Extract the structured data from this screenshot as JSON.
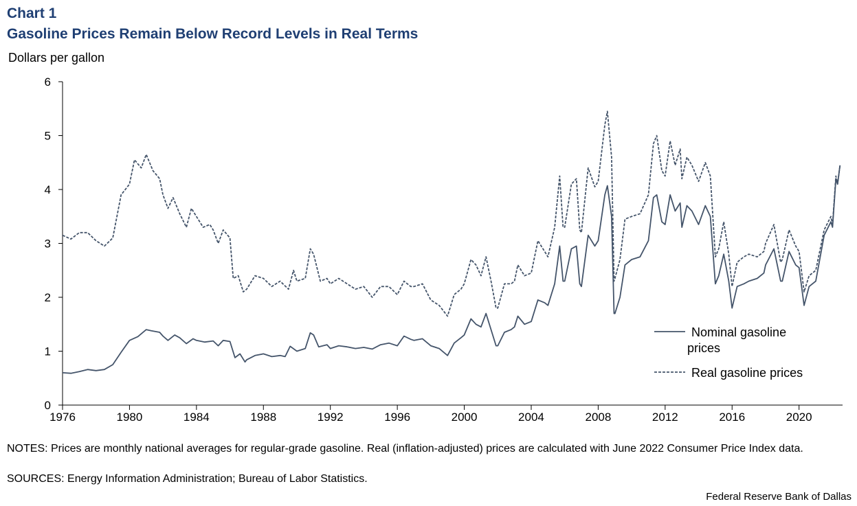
{
  "header": {
    "chart_number": "Chart 1",
    "title": "Gasoline Prices Remain Below Record Levels in Real Terms",
    "ylabel": "Dollars per gallon"
  },
  "footer": {
    "notes": "NOTES: Prices are monthly national averages for regular-grade gasoline. Real (inflation-adjusted) prices are calculated with June 2022 Consumer Price Index data.",
    "sources": "SOURCES: Energy Information Administration; Bureau of Labor Statistics.",
    "credit": "Federal Reserve Bank of Dallas"
  },
  "colors": {
    "title": "#1f3f73",
    "series": "#44546a"
  },
  "chart_data": {
    "type": "line",
    "title": "Gasoline Prices Remain Below Record Levels in Real Terms",
    "xlabel": "",
    "ylabel": "Dollars per gallon",
    "xlim": [
      1976,
      2022.6
    ],
    "ylim": [
      0,
      6
    ],
    "x_ticks": [
      1976,
      1980,
      1984,
      1988,
      1992,
      1996,
      2000,
      2004,
      2008,
      2012,
      2016,
      2020
    ],
    "y_ticks": [
      0,
      1,
      2,
      3,
      4,
      5,
      6
    ],
    "legend_position": "right",
    "series": [
      {
        "name": "Nominal gasoline prices",
        "style": "solid",
        "legend_lines": [
          "Nominal gasoline",
          "prices"
        ],
        "points": [
          [
            1976,
            0.6
          ],
          [
            1976.5,
            0.59
          ],
          [
            1977,
            0.62
          ],
          [
            1977.5,
            0.66
          ],
          [
            1978,
            0.64
          ],
          [
            1978.5,
            0.66
          ],
          [
            1979,
            0.75
          ],
          [
            1979.5,
            0.98
          ],
          [
            1980,
            1.2
          ],
          [
            1980.5,
            1.27
          ],
          [
            1981,
            1.4
          ],
          [
            1981.3,
            1.38
          ],
          [
            1981.8,
            1.35
          ],
          [
            1982,
            1.28
          ],
          [
            1982.3,
            1.2
          ],
          [
            1982.7,
            1.3
          ],
          [
            1983,
            1.25
          ],
          [
            1983.4,
            1.14
          ],
          [
            1983.8,
            1.23
          ],
          [
            1984,
            1.2
          ],
          [
            1984.5,
            1.17
          ],
          [
            1985,
            1.19
          ],
          [
            1985.3,
            1.1
          ],
          [
            1985.6,
            1.2
          ],
          [
            1986,
            1.18
          ],
          [
            1986.3,
            0.88
          ],
          [
            1986.6,
            0.95
          ],
          [
            1986.9,
            0.8
          ],
          [
            1987,
            0.84
          ],
          [
            1987.5,
            0.92
          ],
          [
            1988,
            0.95
          ],
          [
            1988.5,
            0.9
          ],
          [
            1989,
            0.92
          ],
          [
            1989.3,
            0.9
          ],
          [
            1989.6,
            1.09
          ],
          [
            1990,
            1.0
          ],
          [
            1990.5,
            1.05
          ],
          [
            1990.8,
            1.34
          ],
          [
            1991,
            1.3
          ],
          [
            1991.3,
            1.08
          ],
          [
            1991.8,
            1.12
          ],
          [
            1992,
            1.05
          ],
          [
            1992.5,
            1.1
          ],
          [
            1993,
            1.08
          ],
          [
            1993.5,
            1.05
          ],
          [
            1994,
            1.07
          ],
          [
            1994.5,
            1.04
          ],
          [
            1995,
            1.12
          ],
          [
            1995.5,
            1.15
          ],
          [
            1996,
            1.1
          ],
          [
            1996.4,
            1.28
          ],
          [
            1996.8,
            1.22
          ],
          [
            1997,
            1.2
          ],
          [
            1997.5,
            1.23
          ],
          [
            1998,
            1.1
          ],
          [
            1998.5,
            1.05
          ],
          [
            1999,
            0.92
          ],
          [
            1999.4,
            1.15
          ],
          [
            1999.8,
            1.25
          ],
          [
            2000,
            1.3
          ],
          [
            2000.4,
            1.6
          ],
          [
            2000.7,
            1.5
          ],
          [
            2001,
            1.45
          ],
          [
            2001.3,
            1.7
          ],
          [
            2001.6,
            1.4
          ],
          [
            2001.9,
            1.1
          ],
          [
            2002,
            1.1
          ],
          [
            2002.4,
            1.35
          ],
          [
            2002.8,
            1.4
          ],
          [
            2003,
            1.45
          ],
          [
            2003.2,
            1.65
          ],
          [
            2003.6,
            1.5
          ],
          [
            2004,
            1.55
          ],
          [
            2004.4,
            1.95
          ],
          [
            2004.8,
            1.9
          ],
          [
            2005,
            1.85
          ],
          [
            2005.4,
            2.25
          ],
          [
            2005.7,
            2.95
          ],
          [
            2005.9,
            2.3
          ],
          [
            2006,
            2.3
          ],
          [
            2006.4,
            2.9
          ],
          [
            2006.7,
            2.95
          ],
          [
            2006.9,
            2.25
          ],
          [
            2007,
            2.2
          ],
          [
            2007.4,
            3.15
          ],
          [
            2007.8,
            2.95
          ],
          [
            2008,
            3.05
          ],
          [
            2008.4,
            3.9
          ],
          [
            2008.55,
            4.07
          ],
          [
            2008.8,
            3.5
          ],
          [
            2008.95,
            1.7
          ],
          [
            2009,
            1.7
          ],
          [
            2009.3,
            2.0
          ],
          [
            2009.6,
            2.6
          ],
          [
            2010,
            2.7
          ],
          [
            2010.5,
            2.75
          ],
          [
            2011,
            3.05
          ],
          [
            2011.3,
            3.85
          ],
          [
            2011.5,
            3.9
          ],
          [
            2011.8,
            3.4
          ],
          [
            2012,
            3.35
          ],
          [
            2012.3,
            3.9
          ],
          [
            2012.6,
            3.6
          ],
          [
            2012.9,
            3.75
          ],
          [
            2013,
            3.3
          ],
          [
            2013.3,
            3.7
          ],
          [
            2013.6,
            3.6
          ],
          [
            2014,
            3.35
          ],
          [
            2014.4,
            3.7
          ],
          [
            2014.7,
            3.5
          ],
          [
            2015,
            2.25
          ],
          [
            2015.2,
            2.4
          ],
          [
            2015.5,
            2.8
          ],
          [
            2015.8,
            2.3
          ],
          [
            2016,
            1.8
          ],
          [
            2016.3,
            2.2
          ],
          [
            2016.7,
            2.25
          ],
          [
            2017,
            2.3
          ],
          [
            2017.5,
            2.35
          ],
          [
            2017.9,
            2.45
          ],
          [
            2018,
            2.6
          ],
          [
            2018.5,
            2.9
          ],
          [
            2018.9,
            2.3
          ],
          [
            2019,
            2.3
          ],
          [
            2019.4,
            2.85
          ],
          [
            2019.8,
            2.6
          ],
          [
            2020,
            2.55
          ],
          [
            2020.3,
            1.85
          ],
          [
            2020.6,
            2.2
          ],
          [
            2021,
            2.3
          ],
          [
            2021.5,
            3.15
          ],
          [
            2021.9,
            3.4
          ],
          [
            2022,
            3.3
          ],
          [
            2022.2,
            4.2
          ],
          [
            2022.3,
            4.1
          ],
          [
            2022.45,
            4.45
          ]
        ]
      },
      {
        "name": "Real gasoline prices",
        "style": "dashed",
        "legend_lines": [
          "Real gasoline prices"
        ],
        "points": [
          [
            1976,
            3.15
          ],
          [
            1976.5,
            3.08
          ],
          [
            1977,
            3.2
          ],
          [
            1977.5,
            3.2
          ],
          [
            1978,
            3.05
          ],
          [
            1978.5,
            2.95
          ],
          [
            1979,
            3.1
          ],
          [
            1979.5,
            3.9
          ],
          [
            1980,
            4.1
          ],
          [
            1980.3,
            4.55
          ],
          [
            1980.7,
            4.4
          ],
          [
            1981,
            4.65
          ],
          [
            1981.4,
            4.35
          ],
          [
            1981.8,
            4.2
          ],
          [
            1982,
            3.9
          ],
          [
            1982.3,
            3.65
          ],
          [
            1982.6,
            3.85
          ],
          [
            1983,
            3.55
          ],
          [
            1983.4,
            3.3
          ],
          [
            1983.7,
            3.65
          ],
          [
            1984,
            3.5
          ],
          [
            1984.4,
            3.3
          ],
          [
            1984.8,
            3.35
          ],
          [
            1985,
            3.25
          ],
          [
            1985.3,
            3.0
          ],
          [
            1985.6,
            3.25
          ],
          [
            1986,
            3.1
          ],
          [
            1986.2,
            2.35
          ],
          [
            1986.5,
            2.4
          ],
          [
            1986.8,
            2.1
          ],
          [
            1987,
            2.15
          ],
          [
            1987.5,
            2.4
          ],
          [
            1988,
            2.35
          ],
          [
            1988.5,
            2.2
          ],
          [
            1989,
            2.3
          ],
          [
            1989.5,
            2.15
          ],
          [
            1989.8,
            2.5
          ],
          [
            1990,
            2.3
          ],
          [
            1990.5,
            2.35
          ],
          [
            1990.8,
            2.9
          ],
          [
            1991,
            2.8
          ],
          [
            1991.4,
            2.3
          ],
          [
            1991.8,
            2.35
          ],
          [
            1992,
            2.25
          ],
          [
            1992.5,
            2.35
          ],
          [
            1993,
            2.25
          ],
          [
            1993.5,
            2.15
          ],
          [
            1994,
            2.2
          ],
          [
            1994.5,
            2.0
          ],
          [
            1995,
            2.2
          ],
          [
            1995.5,
            2.2
          ],
          [
            1996,
            2.05
          ],
          [
            1996.4,
            2.3
          ],
          [
            1996.8,
            2.2
          ],
          [
            1997,
            2.2
          ],
          [
            1997.5,
            2.25
          ],
          [
            1998,
            1.95
          ],
          [
            1998.5,
            1.85
          ],
          [
            1999,
            1.65
          ],
          [
            1999.4,
            2.05
          ],
          [
            1999.8,
            2.15
          ],
          [
            2000,
            2.25
          ],
          [
            2000.4,
            2.7
          ],
          [
            2000.7,
            2.6
          ],
          [
            2001,
            2.4
          ],
          [
            2001.3,
            2.75
          ],
          [
            2001.6,
            2.3
          ],
          [
            2001.9,
            1.8
          ],
          [
            2002,
            1.8
          ],
          [
            2002.4,
            2.25
          ],
          [
            2002.8,
            2.25
          ],
          [
            2003,
            2.3
          ],
          [
            2003.2,
            2.6
          ],
          [
            2003.6,
            2.4
          ],
          [
            2004,
            2.45
          ],
          [
            2004.4,
            3.05
          ],
          [
            2004.8,
            2.85
          ],
          [
            2005,
            2.75
          ],
          [
            2005.4,
            3.3
          ],
          [
            2005.7,
            4.25
          ],
          [
            2005.9,
            3.3
          ],
          [
            2006,
            3.3
          ],
          [
            2006.4,
            4.1
          ],
          [
            2006.7,
            4.2
          ],
          [
            2006.9,
            3.25
          ],
          [
            2007,
            3.2
          ],
          [
            2007.4,
            4.4
          ],
          [
            2007.8,
            4.05
          ],
          [
            2008,
            4.15
          ],
          [
            2008.4,
            5.2
          ],
          [
            2008.55,
            5.45
          ],
          [
            2008.8,
            4.6
          ],
          [
            2008.95,
            2.3
          ],
          [
            2009,
            2.35
          ],
          [
            2009.3,
            2.7
          ],
          [
            2009.6,
            3.45
          ],
          [
            2010,
            3.5
          ],
          [
            2010.5,
            3.55
          ],
          [
            2011,
            3.9
          ],
          [
            2011.3,
            4.85
          ],
          [
            2011.5,
            5.0
          ],
          [
            2011.8,
            4.35
          ],
          [
            2012,
            4.25
          ],
          [
            2012.3,
            4.9
          ],
          [
            2012.6,
            4.45
          ],
          [
            2012.9,
            4.75
          ],
          [
            2013,
            4.2
          ],
          [
            2013.3,
            4.6
          ],
          [
            2013.6,
            4.45
          ],
          [
            2014,
            4.15
          ],
          [
            2014.4,
            4.5
          ],
          [
            2014.7,
            4.25
          ],
          [
            2015,
            2.75
          ],
          [
            2015.2,
            2.9
          ],
          [
            2015.5,
            3.4
          ],
          [
            2015.8,
            2.8
          ],
          [
            2016,
            2.2
          ],
          [
            2016.3,
            2.65
          ],
          [
            2016.7,
            2.75
          ],
          [
            2017,
            2.8
          ],
          [
            2017.5,
            2.75
          ],
          [
            2017.9,
            2.85
          ],
          [
            2018,
            3.0
          ],
          [
            2018.5,
            3.35
          ],
          [
            2018.9,
            2.65
          ],
          [
            2019,
            2.7
          ],
          [
            2019.4,
            3.25
          ],
          [
            2019.8,
            2.95
          ],
          [
            2020,
            2.85
          ],
          [
            2020.3,
            2.1
          ],
          [
            2020.6,
            2.4
          ],
          [
            2021,
            2.5
          ],
          [
            2021.5,
            3.25
          ],
          [
            2021.9,
            3.5
          ],
          [
            2022,
            3.35
          ],
          [
            2022.2,
            4.25
          ],
          [
            2022.3,
            4.1
          ],
          [
            2022.45,
            4.45
          ]
        ]
      }
    ]
  }
}
